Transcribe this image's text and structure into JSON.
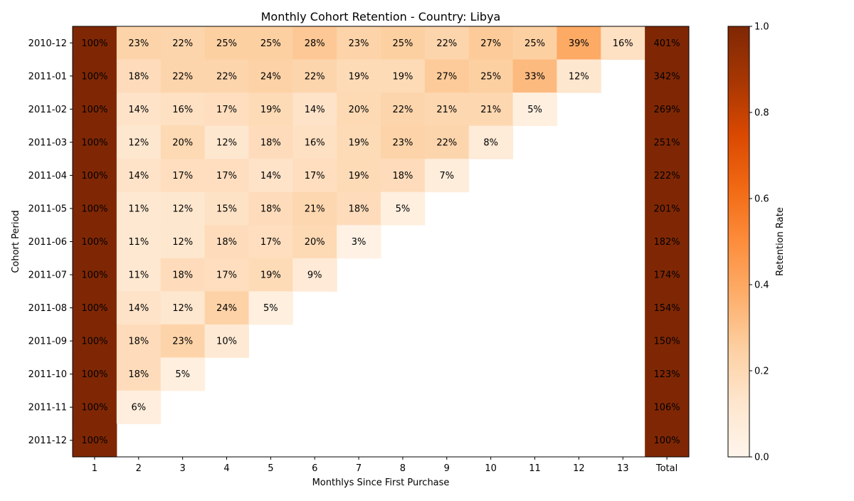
{
  "chart_data": {
    "type": "heatmap",
    "title": "Monthly Cohort Retention - Country: Libya",
    "xlabel": "Monthlys Since First Purchase",
    "ylabel": "Cohort Period",
    "x_categories": [
      "1",
      "2",
      "3",
      "4",
      "5",
      "6",
      "7",
      "8",
      "9",
      "10",
      "11",
      "12",
      "13",
      "Total"
    ],
    "y_categories": [
      "2010-12",
      "2011-01",
      "2011-02",
      "2011-03",
      "2011-04",
      "2011-05",
      "2011-06",
      "2011-07",
      "2011-08",
      "2011-09",
      "2011-10",
      "2011-11",
      "2011-12"
    ],
    "values": [
      [
        100,
        23,
        22,
        25,
        25,
        28,
        23,
        25,
        22,
        27,
        25,
        39,
        16,
        401
      ],
      [
        100,
        18,
        22,
        22,
        24,
        22,
        19,
        19,
        27,
        25,
        33,
        12,
        null,
        342
      ],
      [
        100,
        14,
        16,
        17,
        19,
        14,
        20,
        22,
        21,
        21,
        5,
        null,
        null,
        269
      ],
      [
        100,
        12,
        20,
        12,
        18,
        16,
        19,
        23,
        22,
        8,
        null,
        null,
        null,
        251
      ],
      [
        100,
        14,
        17,
        17,
        14,
        17,
        19,
        18,
        7,
        null,
        null,
        null,
        null,
        222
      ],
      [
        100,
        11,
        12,
        15,
        18,
        21,
        18,
        5,
        null,
        null,
        null,
        null,
        null,
        201
      ],
      [
        100,
        11,
        12,
        18,
        17,
        20,
        3,
        null,
        null,
        null,
        null,
        null,
        null,
        182
      ],
      [
        100,
        11,
        18,
        17,
        19,
        9,
        null,
        null,
        null,
        null,
        null,
        null,
        null,
        174
      ],
      [
        100,
        14,
        12,
        24,
        5,
        null,
        null,
        null,
        null,
        null,
        null,
        null,
        null,
        154
      ],
      [
        100,
        18,
        23,
        10,
        null,
        null,
        null,
        null,
        null,
        null,
        null,
        null,
        null,
        150
      ],
      [
        100,
        18,
        5,
        null,
        null,
        null,
        null,
        null,
        null,
        null,
        null,
        null,
        null,
        123
      ],
      [
        100,
        6,
        null,
        null,
        null,
        null,
        null,
        null,
        null,
        null,
        null,
        null,
        null,
        106
      ],
      [
        100,
        null,
        null,
        null,
        null,
        null,
        null,
        null,
        null,
        null,
        null,
        null,
        null,
        100
      ]
    ],
    "value_format": "percent",
    "colorscale": "Oranges",
    "colorbar": {
      "label": "Retention Rate",
      "range": [
        0.0,
        1.0
      ],
      "ticks": [
        "0.0",
        "0.2",
        "0.4",
        "0.6",
        "0.8",
        "1.0"
      ]
    },
    "grid": false,
    "legend": "colorbar-right"
  }
}
